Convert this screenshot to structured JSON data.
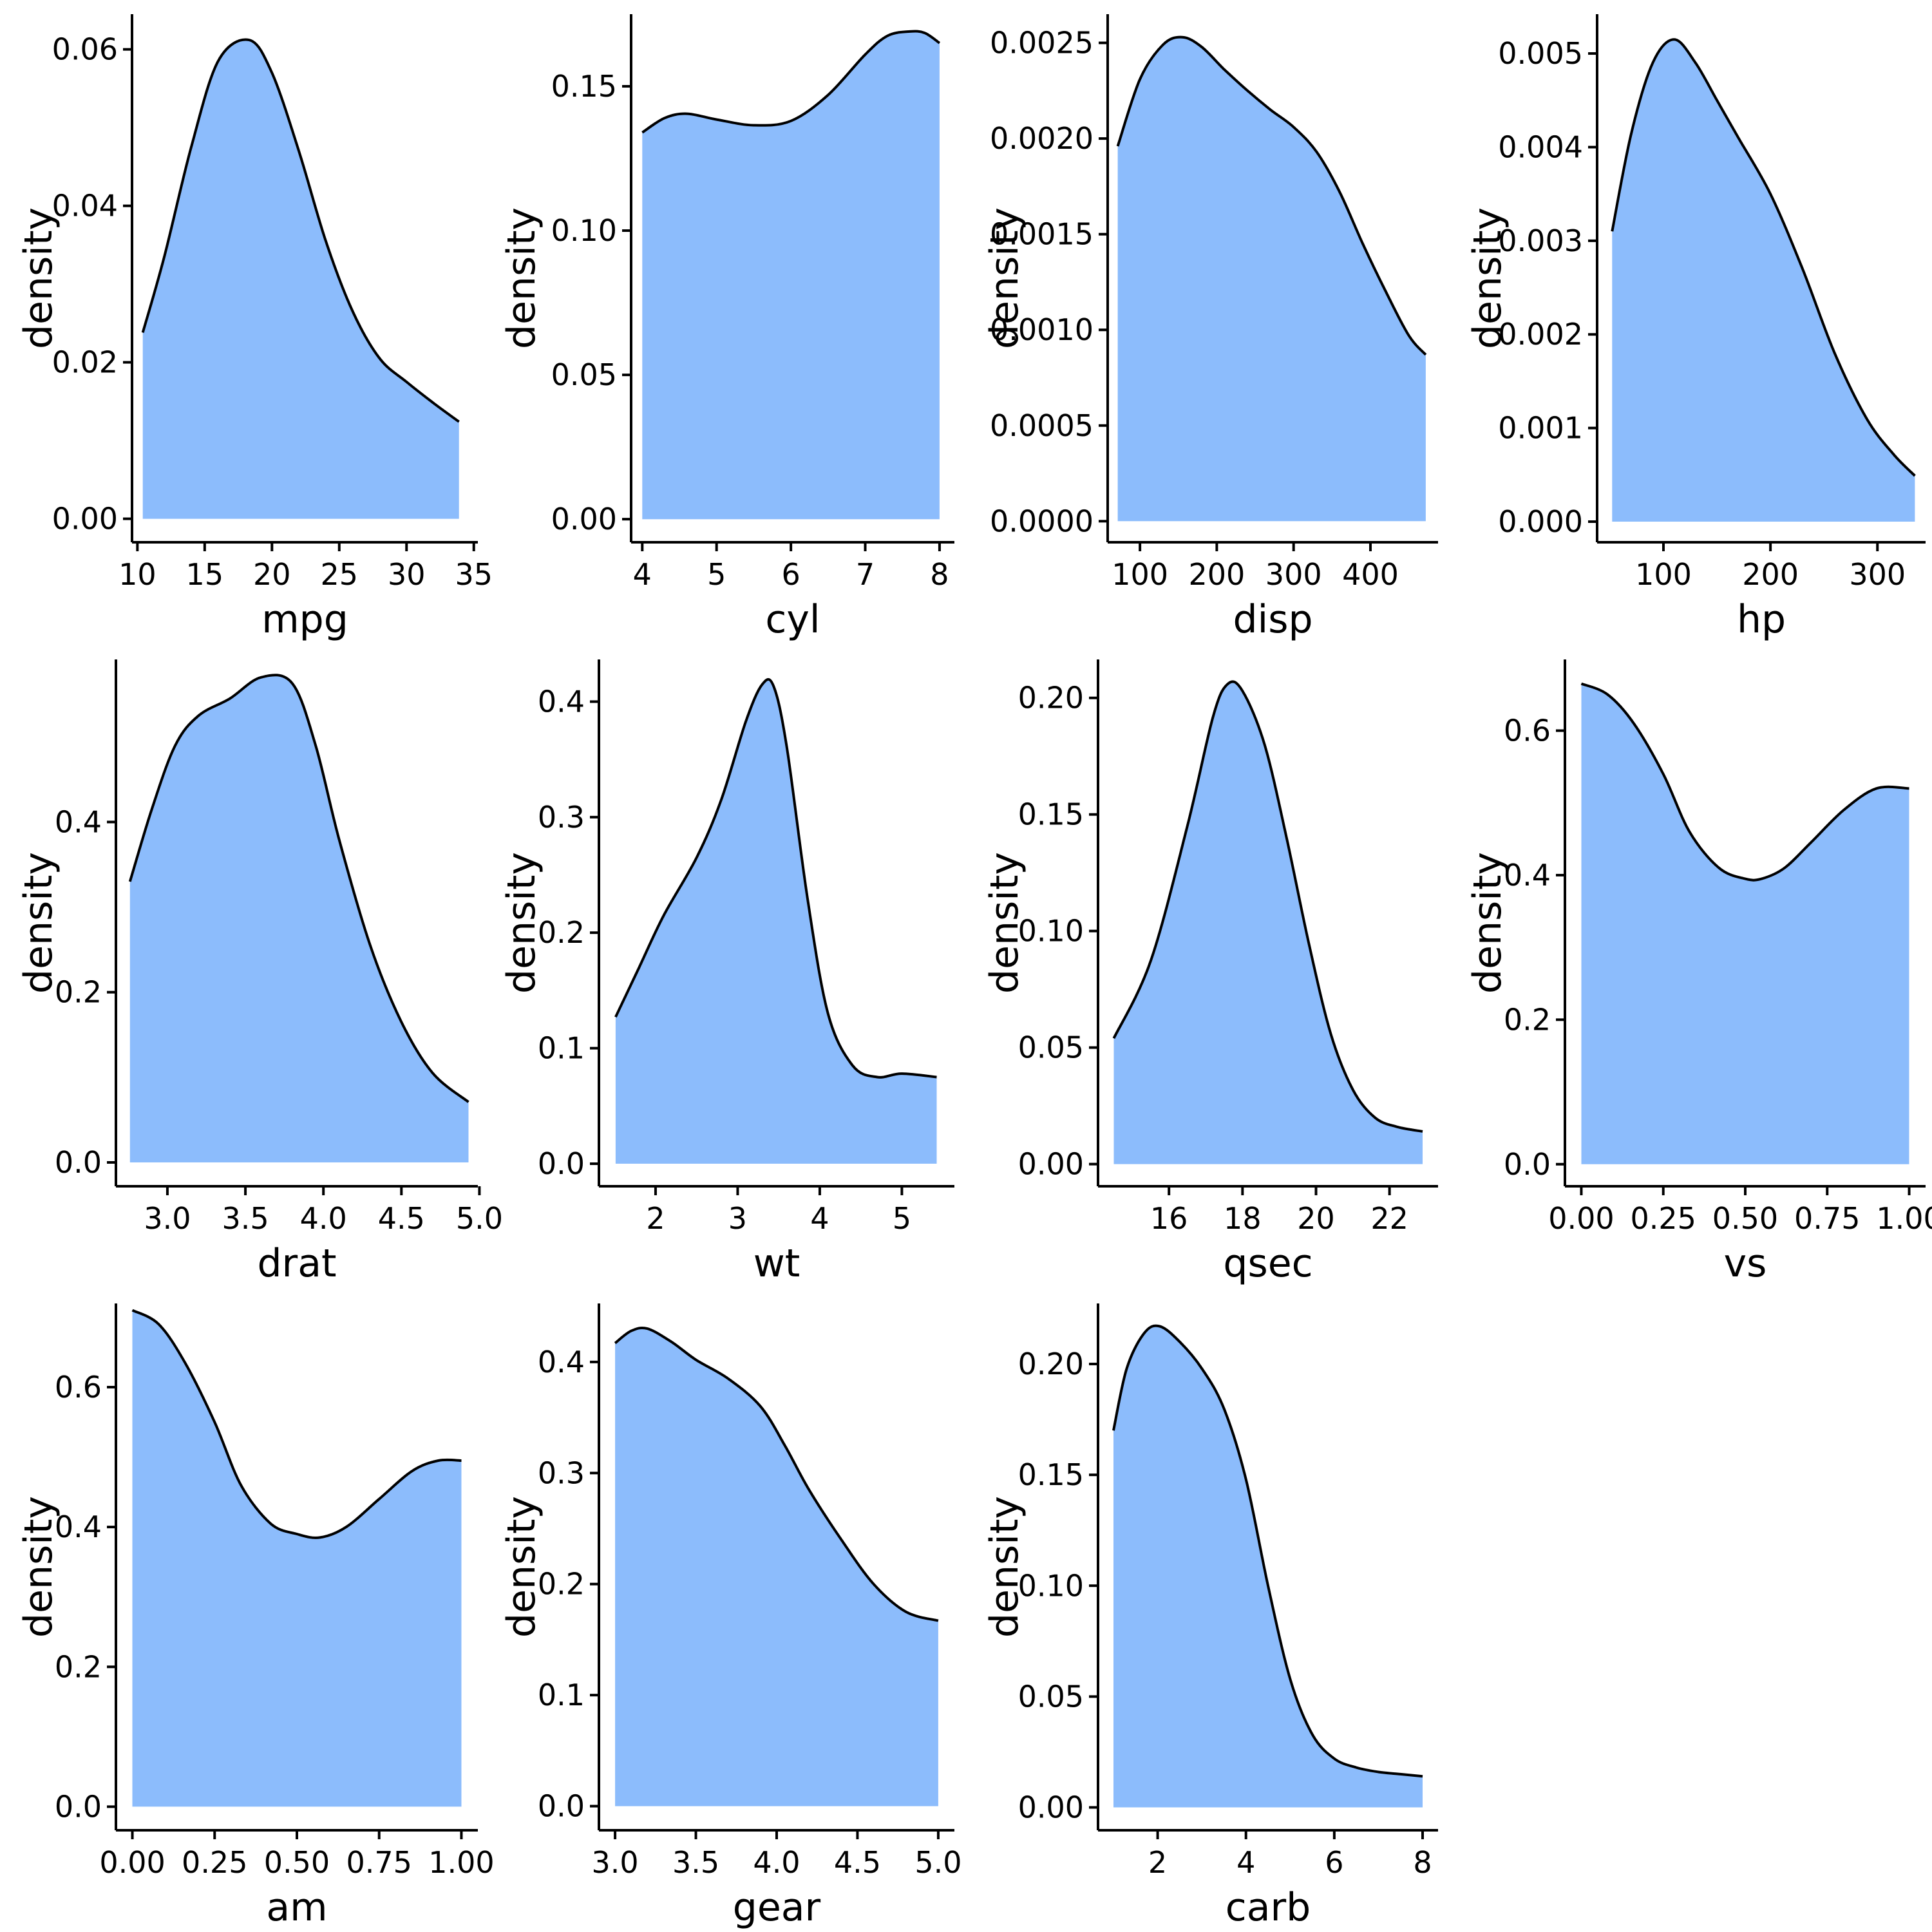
{
  "chart_data": [
    {
      "type": "area",
      "title": "",
      "xlabel": "mpg",
      "ylabel": "density",
      "xlim": [
        9.6,
        35.3
      ],
      "xticks": [
        10,
        15,
        20,
        25,
        30,
        35
      ],
      "xtick_labels": [
        "10",
        "15",
        "20",
        "25",
        "30",
        "35"
      ],
      "ylim": [
        -0.003,
        0.0645
      ],
      "yticks": [
        0,
        0.02,
        0.04,
        0.06
      ],
      "ytick_labels": [
        "0.00",
        "0.02",
        "0.04",
        "0.06"
      ],
      "x": [
        10.4,
        12,
        14,
        16,
        18.3,
        20,
        22,
        24,
        26,
        28,
        30,
        32,
        33.9
      ],
      "y": [
        0.0238,
        0.0335,
        0.0475,
        0.0585,
        0.0612,
        0.057,
        0.047,
        0.0355,
        0.0265,
        0.0205,
        0.0175,
        0.0148,
        0.0124
      ]
    },
    {
      "type": "area",
      "title": "",
      "xlabel": "cyl",
      "ylabel": "density",
      "xlim": [
        3.85,
        8.2
      ],
      "xticks": [
        4,
        5,
        6,
        7,
        8
      ],
      "xtick_labels": [
        "4",
        "5",
        "6",
        "7",
        "8"
      ],
      "ylim": [
        -0.008,
        0.175
      ],
      "yticks": [
        0,
        0.05,
        0.1,
        0.15
      ],
      "ytick_labels": [
        "0.00",
        "0.05",
        "0.10",
        "0.15"
      ],
      "x": [
        4,
        4.3,
        4.6,
        5,
        5.5,
        6,
        6.5,
        7,
        7.3,
        7.6,
        7.8,
        8
      ],
      "y": [
        0.134,
        0.139,
        0.1405,
        0.1385,
        0.1365,
        0.138,
        0.147,
        0.161,
        0.1675,
        0.169,
        0.1685,
        0.165
      ]
    },
    {
      "type": "area",
      "title": "",
      "xlabel": "disp",
      "ylabel": "density",
      "xlim": [
        58,
        488
      ],
      "xticks": [
        100,
        200,
        300,
        400
      ],
      "xtick_labels": [
        "100",
        "200",
        "300",
        "400"
      ],
      "ylim": [
        -0.00011,
        0.00265
      ],
      "yticks": [
        0,
        0.0005,
        0.001,
        0.0015,
        0.002,
        0.0025
      ],
      "ytick_labels": [
        "0.0000",
        "0.0005",
        "0.0010",
        "0.0015",
        "0.0020",
        "0.0025"
      ],
      "x": [
        71.1,
        100,
        130,
        155,
        180,
        210,
        240,
        270,
        300,
        330,
        360,
        390,
        420,
        450,
        472
      ],
      "y": [
        0.00196,
        0.00231,
        0.00249,
        0.00253,
        0.00248,
        0.00236,
        0.00225,
        0.00215,
        0.00206,
        0.00193,
        0.00172,
        0.00145,
        0.0012,
        0.00097,
        0.00087
      ]
    },
    {
      "type": "area",
      "title": "",
      "xlabel": "hp",
      "ylabel": "density",
      "xlim": [
        38,
        345
      ],
      "xticks": [
        100,
        200,
        300
      ],
      "xtick_labels": [
        "100",
        "200",
        "300"
      ],
      "ylim": [
        -0.00022,
        0.00542
      ],
      "yticks": [
        0,
        0.001,
        0.002,
        0.003,
        0.004,
        0.005
      ],
      "ytick_labels": [
        "0.000",
        "0.001",
        "0.002",
        "0.003",
        "0.004",
        "0.005"
      ],
      "x": [
        52,
        70,
        90,
        110,
        130,
        150,
        170,
        200,
        230,
        260,
        290,
        315,
        335
      ],
      "y": [
        0.0031,
        0.00415,
        0.0049,
        0.00515,
        0.0049,
        0.0045,
        0.0041,
        0.0035,
        0.0027,
        0.0018,
        0.0011,
        0.00072,
        0.00049
      ]
    },
    {
      "type": "area",
      "title": "",
      "xlabel": "drat",
      "ylabel": "density",
      "xlim": [
        2.67,
        4.99
      ],
      "xticks": [
        3.0,
        3.5,
        4.0,
        4.5,
        5.0
      ],
      "xtick_labels": [
        "3.0",
        "3.5",
        "4.0",
        "4.5",
        "5.0"
      ],
      "ylim": [
        -0.028,
        0.591
      ],
      "yticks": [
        0,
        0.2,
        0.4
      ],
      "ytick_labels": [
        "0.0",
        "0.2",
        "0.4"
      ],
      "x": [
        2.76,
        2.9,
        3.05,
        3.2,
        3.4,
        3.6,
        3.8,
        3.95,
        4.1,
        4.3,
        4.5,
        4.7,
        4.93
      ],
      "y": [
        0.33,
        0.415,
        0.49,
        0.525,
        0.545,
        0.57,
        0.563,
        0.49,
        0.38,
        0.255,
        0.165,
        0.105,
        0.071
      ]
    },
    {
      "type": "area",
      "title": "",
      "xlabel": "wt",
      "ylabel": "density",
      "xlim": [
        1.31,
        5.64
      ],
      "xticks": [
        2,
        3,
        4,
        5
      ],
      "xtick_labels": [
        "2",
        "3",
        "4",
        "5"
      ],
      "ylim": [
        -0.0195,
        0.4365
      ],
      "yticks": [
        0,
        0.1,
        0.2,
        0.3,
        0.4
      ],
      "ytick_labels": [
        "0.0",
        "0.1",
        "0.2",
        "0.3",
        "0.4"
      ],
      "x": [
        1.513,
        1.8,
        2.1,
        2.5,
        2.8,
        3.1,
        3.3,
        3.44,
        3.6,
        3.85,
        4.1,
        4.4,
        4.7,
        5.0,
        5.424
      ],
      "y": [
        0.127,
        0.17,
        0.215,
        0.265,
        0.315,
        0.383,
        0.415,
        0.413,
        0.36,
        0.23,
        0.13,
        0.085,
        0.075,
        0.078,
        0.075
      ]
    },
    {
      "type": "area",
      "title": "",
      "xlabel": "qsec",
      "ylabel": "density",
      "xlim": [
        14.07,
        23.32
      ],
      "xticks": [
        16,
        18,
        20,
        22
      ],
      "xtick_labels": [
        "16",
        "18",
        "20",
        "22"
      ],
      "ylim": [
        -0.0095,
        0.2165
      ],
      "yticks": [
        0,
        0.05,
        0.1,
        0.15,
        0.2
      ],
      "ytick_labels": [
        "0.00",
        "0.05",
        "0.10",
        "0.15",
        "0.20"
      ],
      "x": [
        14.5,
        15.5,
        16.5,
        17.2,
        17.6,
        18,
        18.6,
        19.2,
        19.8,
        20.4,
        21,
        21.6,
        22.2,
        22.9
      ],
      "y": [
        0.054,
        0.087,
        0.145,
        0.192,
        0.206,
        0.203,
        0.18,
        0.14,
        0.095,
        0.056,
        0.032,
        0.02,
        0.016,
        0.014
      ]
    },
    {
      "type": "area",
      "title": "",
      "xlabel": "vs",
      "ylabel": "density",
      "xlim": [
        -0.05,
        1.05
      ],
      "xticks": [
        0,
        0.25,
        0.5,
        0.75,
        1.0
      ],
      "xtick_labels": [
        "0.00",
        "0.25",
        "0.50",
        "0.75",
        "1.00"
      ],
      "ylim": [
        -0.0305,
        0.6985
      ],
      "yticks": [
        0,
        0.2,
        0.4,
        0.6
      ],
      "ytick_labels": [
        "0.0",
        "0.2",
        "0.4",
        "0.6"
      ],
      "x": [
        0,
        0.08,
        0.16,
        0.25,
        0.33,
        0.42,
        0.5,
        0.55,
        0.62,
        0.7,
        0.8,
        0.9,
        1.0
      ],
      "y": [
        0.665,
        0.65,
        0.61,
        0.54,
        0.46,
        0.41,
        0.395,
        0.395,
        0.41,
        0.445,
        0.49,
        0.52,
        0.52
      ]
    },
    {
      "type": "area",
      "title": "",
      "xlabel": "am",
      "ylabel": "density",
      "xlim": [
        -0.05,
        1.05
      ],
      "xticks": [
        0,
        0.25,
        0.5,
        0.75,
        1.0
      ],
      "xtick_labels": [
        "0.00",
        "0.25",
        "0.50",
        "0.75",
        "1.00"
      ],
      "ylim": [
        -0.0337,
        0.7197
      ],
      "yticks": [
        0,
        0.2,
        0.4,
        0.6
      ],
      "ytick_labels": [
        "0.0",
        "0.2",
        "0.4",
        "0.6"
      ],
      "x": [
        0,
        0.08,
        0.16,
        0.25,
        0.33,
        0.42,
        0.5,
        0.57,
        0.65,
        0.75,
        0.85,
        0.93,
        1.0
      ],
      "y": [
        0.71,
        0.69,
        0.635,
        0.55,
        0.46,
        0.405,
        0.39,
        0.385,
        0.4,
        0.44,
        0.48,
        0.495,
        0.495
      ]
    },
    {
      "type": "area",
      "title": "",
      "xlabel": "gear",
      "ylabel": "density",
      "xlim": [
        2.9,
        5.1
      ],
      "xticks": [
        3.0,
        3.5,
        4.0,
        4.5,
        5.0
      ],
      "xtick_labels": [
        "3.0",
        "3.5",
        "4.0",
        "4.5",
        "5.0"
      ],
      "ylim": [
        -0.0217,
        0.4527
      ],
      "yticks": [
        0,
        0.1,
        0.2,
        0.3,
        0.4
      ],
      "ytick_labels": [
        "0.0",
        "0.1",
        "0.2",
        "0.3",
        "0.4"
      ],
      "x": [
        3,
        3.1,
        3.2,
        3.35,
        3.5,
        3.7,
        3.9,
        4.05,
        4.2,
        4.4,
        4.6,
        4.8,
        5.0
      ],
      "y": [
        0.417,
        0.428,
        0.43,
        0.418,
        0.402,
        0.385,
        0.36,
        0.325,
        0.285,
        0.24,
        0.2,
        0.175,
        0.167
      ]
    },
    {
      "type": "area",
      "title": "",
      "xlabel": "carb",
      "ylabel": "density",
      "xlim": [
        0.65,
        8.35
      ],
      "xticks": [
        2,
        4,
        6,
        8
      ],
      "xtick_labels": [
        "2",
        "4",
        "6",
        "8"
      ],
      "ylim": [
        -0.0103,
        0.2273
      ],
      "yticks": [
        0,
        0.05,
        0.1,
        0.15,
        0.2
      ],
      "ytick_labels": [
        "0.00",
        "0.05",
        "0.10",
        "0.15",
        "0.20"
      ],
      "x": [
        1,
        1.3,
        1.7,
        2.05,
        2.5,
        3,
        3.5,
        4,
        4.5,
        5,
        5.5,
        6,
        6.5,
        7,
        7.5,
        8
      ],
      "y": [
        0.17,
        0.198,
        0.214,
        0.217,
        0.21,
        0.198,
        0.18,
        0.148,
        0.1,
        0.058,
        0.033,
        0.022,
        0.018,
        0.016,
        0.015,
        0.014
      ]
    }
  ]
}
